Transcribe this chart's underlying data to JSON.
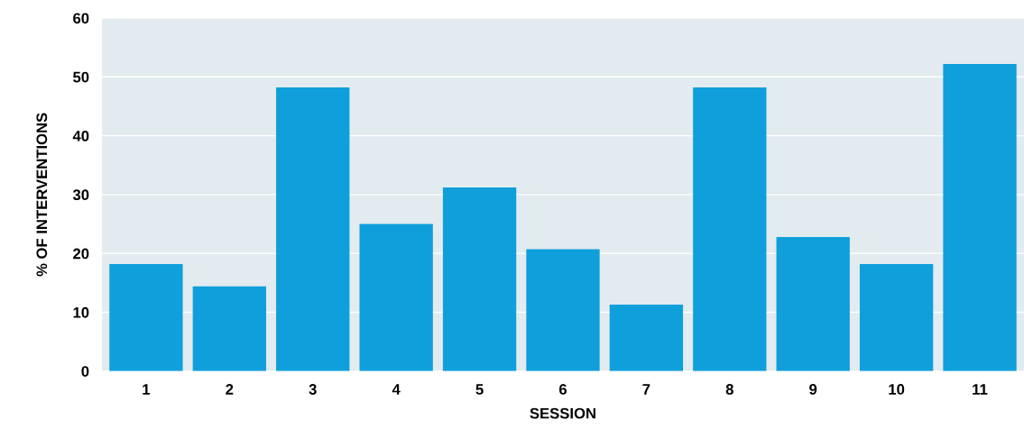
{
  "chart_data": {
    "type": "bar",
    "xlabel": "SESSION",
    "ylabel": "% OF INTERVENTIONS",
    "categories": [
      "1",
      "2",
      "3",
      "4",
      "5",
      "6",
      "7",
      "8",
      "9",
      "10",
      "11"
    ],
    "values": [
      18.2,
      14.4,
      48.2,
      25.0,
      31.2,
      20.7,
      11.3,
      48.2,
      22.8,
      18.2,
      52.2
    ],
    "color": "#0f9fdb",
    "ylim": [
      0,
      60
    ],
    "yticks": [
      0,
      10,
      20,
      30,
      40,
      50,
      60
    ],
    "grid": "y"
  }
}
